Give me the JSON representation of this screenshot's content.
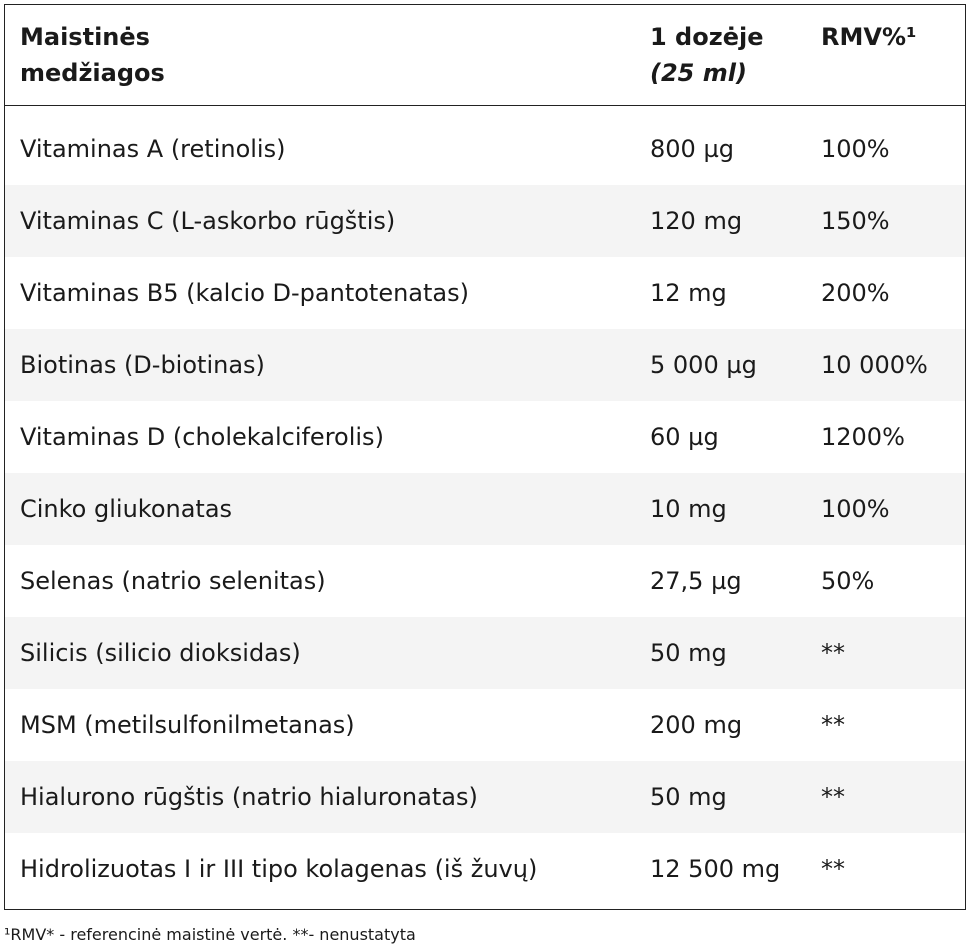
{
  "header": {
    "col1_line1": "Maistinės",
    "col1_line2": "medžiagos",
    "col2_line1": "1 dozėje",
    "col2_line2": "(25 ml)",
    "col3": "RMV%¹"
  },
  "rows": [
    {
      "name": "Vitaminas A (retinolis)",
      "amount": "800 µg",
      "rmv": "100%"
    },
    {
      "name": "Vitaminas C (L-askorbo rūgštis)",
      "amount": "120 mg",
      "rmv": "150%"
    },
    {
      "name": "Vitaminas B5 (kalcio D-pantotenatas)",
      "amount": "12 mg",
      "rmv": "200%"
    },
    {
      "name": "Biotinas (D-biotinas)",
      "amount": "5 000 µg",
      "rmv": "10 000%"
    },
    {
      "name": "Vitaminas D (cholekalciferolis)",
      "amount": "60 µg",
      "rmv": "1200%"
    },
    {
      "name": "Cinko gliukonatas",
      "amount": "10 mg",
      "rmv": "100%"
    },
    {
      "name": "Selenas (natrio selenitas)",
      "amount": "27,5 µg",
      "rmv": "50%"
    },
    {
      "name": "Silicis (silicio dioksidas)",
      "amount": "50 mg",
      "rmv": "**"
    },
    {
      "name": "MSM (metilsulfonilmetanas)",
      "amount": "200 mg",
      "rmv": "**"
    },
    {
      "name": "Hialurono rūgštis (natrio hialuronatas)",
      "amount": "50 mg",
      "rmv": "**"
    },
    {
      "name": "Hidrolizuotas I ir III tipo kolagenas (iš žuvų)",
      "amount": "12 500 mg",
      "rmv": "**"
    }
  ],
  "footnote": "¹RMV* - referencinė maistinė vertė. **- nenustatyta",
  "colors": {
    "border": "#222222",
    "row_alt_bg": "#f4f4f4",
    "text": "#1a1a1a"
  }
}
